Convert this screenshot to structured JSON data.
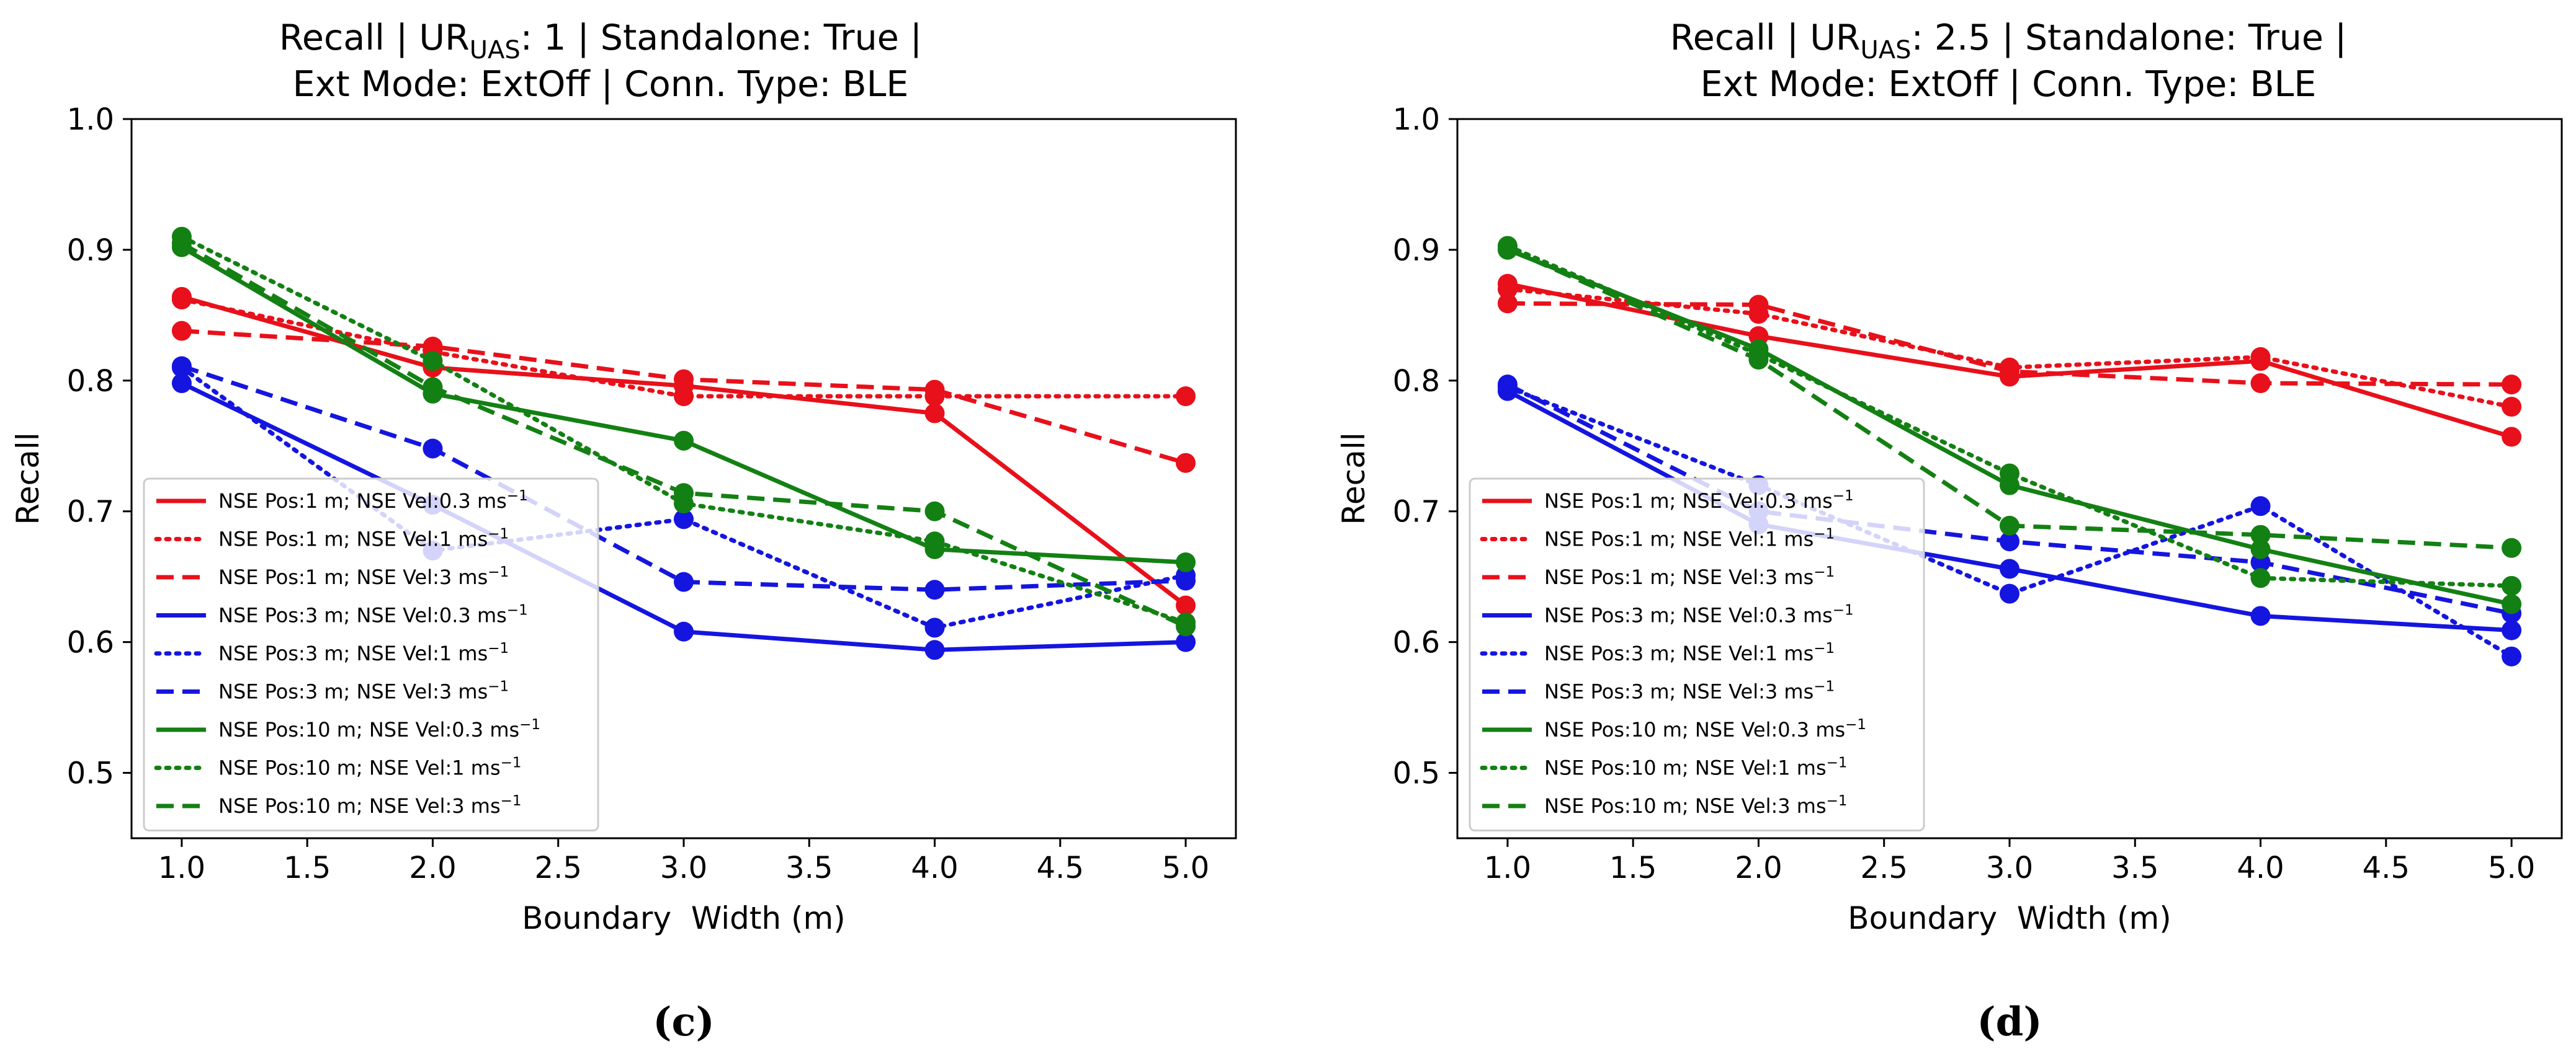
{
  "chart_data": [
    {
      "type": "line",
      "title_line1": "Recall | UR",
      "title_sub": "UAS",
      "title_line1_rest": ": 1 | Standalone: True |",
      "title_line2": "Ext Mode: ExtOff | Conn. Type: BLE",
      "xlabel": "Boundary  Width (m)",
      "ylabel": "Recall",
      "caption": "(c)",
      "xlim": [
        0.8,
        5.2
      ],
      "ylim": [
        0.45,
        1.0
      ],
      "xticks": [
        "1.0",
        "1.5",
        "2.0",
        "2.5",
        "3.0",
        "3.5",
        "4.0",
        "4.5",
        "5.0"
      ],
      "yticks": [
        "0.5",
        "0.6",
        "0.7",
        "0.8",
        "0.9",
        "1.0"
      ],
      "grid": false,
      "legend_position": "lower-left",
      "x": [
        1,
        2,
        3,
        4,
        5
      ],
      "series": [
        {
          "name": "NSE Pos:1 m; NSE Vel:0.3 ms",
          "color": "#e8101a",
          "dash": "solid",
          "values": [
            0.864,
            0.81,
            0.796,
            0.775,
            0.628
          ]
        },
        {
          "name": "NSE Pos:1 m; NSE Vel:1 ms",
          "color": "#e8101a",
          "dash": "dotted",
          "values": [
            0.862,
            0.822,
            0.788,
            0.788,
            0.788
          ]
        },
        {
          "name": "NSE Pos:1 m; NSE Vel:3 ms",
          "color": "#e8101a",
          "dash": "dashed",
          "values": [
            0.838,
            0.826,
            0.801,
            0.793,
            0.737
          ]
        },
        {
          "name": "NSE Pos:3 m; NSE Vel:0.3 ms",
          "color": "#1515e0",
          "dash": "solid",
          "values": [
            0.798,
            0.705,
            0.608,
            0.594,
            0.6
          ]
        },
        {
          "name": "NSE Pos:3 m; NSE Vel:1 ms",
          "color": "#1515e0",
          "dash": "dotted",
          "values": [
            0.81,
            0.67,
            0.694,
            0.611,
            0.651
          ]
        },
        {
          "name": "NSE Pos:3 m; NSE Vel:3 ms",
          "color": "#1515e0",
          "dash": "dashed",
          "values": [
            0.811,
            0.748,
            0.646,
            0.64,
            0.647
          ]
        },
        {
          "name": "NSE Pos:10 m; NSE Vel:0.3 ms",
          "color": "#138013",
          "dash": "solid",
          "values": [
            0.902,
            0.79,
            0.754,
            0.671,
            0.661
          ]
        },
        {
          "name": "NSE Pos:10 m; NSE Vel:1 ms",
          "color": "#138013",
          "dash": "dotted",
          "values": [
            0.91,
            0.815,
            0.706,
            0.677,
            0.615
          ]
        },
        {
          "name": "NSE Pos:10 m; NSE Vel:3 ms",
          "color": "#138013",
          "dash": "dashed",
          "values": [
            0.905,
            0.795,
            0.714,
            0.7,
            0.612
          ]
        }
      ]
    },
    {
      "type": "line",
      "title_line1": "Recall | UR",
      "title_sub": "UAS",
      "title_line1_rest": ": 2.5 | Standalone: True |",
      "title_line2": "Ext Mode: ExtOff | Conn. Type: BLE",
      "xlabel": "Boundary  Width (m)",
      "ylabel": "Recall",
      "caption": "(d)",
      "xlim": [
        0.8,
        5.2
      ],
      "ylim": [
        0.45,
        1.0
      ],
      "xticks": [
        "1.0",
        "1.5",
        "2.0",
        "2.5",
        "3.0",
        "3.5",
        "4.0",
        "4.5",
        "5.0"
      ],
      "yticks": [
        "0.5",
        "0.6",
        "0.7",
        "0.8",
        "0.9",
        "1.0"
      ],
      "grid": false,
      "legend_position": "lower-left",
      "x": [
        1,
        2,
        3,
        4,
        5
      ],
      "series": [
        {
          "name": "NSE Pos:1 m; NSE Vel:0.3 ms",
          "color": "#e8101a",
          "dash": "solid",
          "values": [
            0.874,
            0.834,
            0.803,
            0.815,
            0.757
          ]
        },
        {
          "name": "NSE Pos:1 m; NSE Vel:1 ms",
          "color": "#e8101a",
          "dash": "dotted",
          "values": [
            0.87,
            0.851,
            0.81,
            0.818,
            0.78
          ]
        },
        {
          "name": "NSE Pos:1 m; NSE Vel:3 ms",
          "color": "#e8101a",
          "dash": "dashed",
          "values": [
            0.859,
            0.858,
            0.807,
            0.798,
            0.797
          ]
        },
        {
          "name": "NSE Pos:3 m; NSE Vel:0.3 ms",
          "color": "#1515e0",
          "dash": "solid",
          "values": [
            0.792,
            0.69,
            0.656,
            0.62,
            0.609
          ]
        },
        {
          "name": "NSE Pos:3 m; NSE Vel:1 ms",
          "color": "#1515e0",
          "dash": "dotted",
          "values": [
            0.795,
            0.72,
            0.637,
            0.704,
            0.589
          ]
        },
        {
          "name": "NSE Pos:3 m; NSE Vel:3 ms",
          "color": "#1515e0",
          "dash": "dashed",
          "values": [
            0.797,
            0.7,
            0.677,
            0.661,
            0.622
          ]
        },
        {
          "name": "NSE Pos:10 m; NSE Vel:0.3 ms",
          "color": "#138013",
          "dash": "solid",
          "values": [
            0.9,
            0.824,
            0.72,
            0.671,
            0.629
          ]
        },
        {
          "name": "NSE Pos:10 m; NSE Vel:1 ms",
          "color": "#138013",
          "dash": "dotted",
          "values": [
            0.903,
            0.82,
            0.729,
            0.649,
            0.643
          ]
        },
        {
          "name": "NSE Pos:10 m; NSE Vel:3 ms",
          "color": "#138013",
          "dash": "dashed",
          "values": [
            0.901,
            0.816,
            0.689,
            0.682,
            0.672
          ]
        }
      ]
    }
  ],
  "legend_unit_superscript": "−1"
}
